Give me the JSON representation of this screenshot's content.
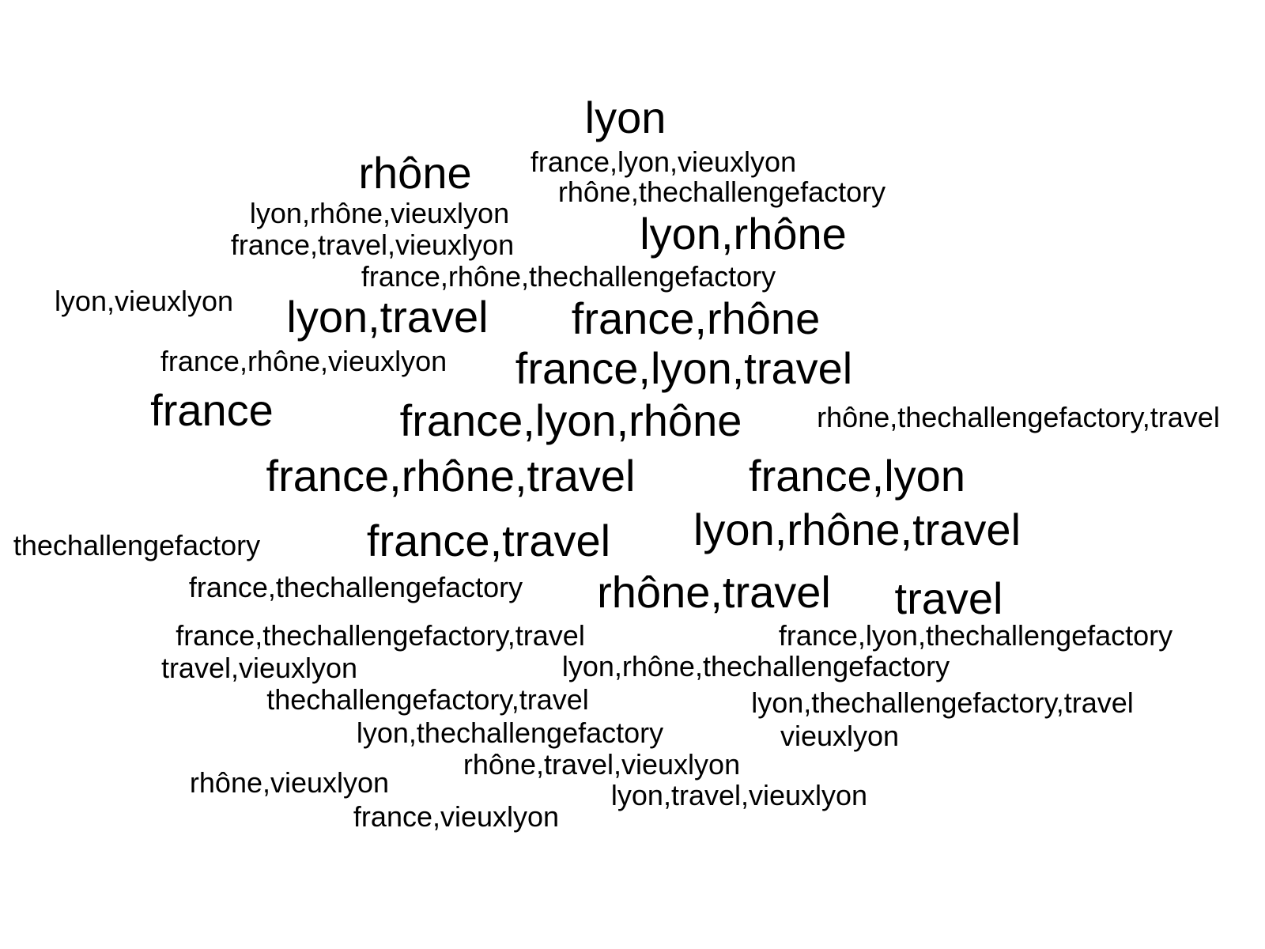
{
  "word_cloud": {
    "words": [
      "lyon",
      "france,lyon,vieuxlyon",
      "rhône",
      "rhône,thechallengefactory",
      "lyon,rhône,vieuxlyon",
      "lyon,rhône",
      "france,travel,vieuxlyon",
      "france,rhône,thechallengefactory",
      "lyon,vieuxlyon",
      "lyon,travel",
      "france,rhône",
      "france,rhône,vieuxlyon",
      "france,lyon,travel",
      "france",
      "france,lyon,rhône",
      "rhône,thechallengefactory,travel",
      "france,rhône,travel",
      "france,lyon",
      "lyon,rhône,travel",
      "thechallengefactory",
      "france,travel",
      "france,thechallengefactory",
      "rhône,travel",
      "travel",
      "france,thechallengefactory,travel",
      "france,lyon,thechallengefactory",
      "travel,vieuxlyon",
      "lyon,rhône,thechallengefactory",
      "thechallengefactory,travel",
      "lyon,thechallengefactory,travel",
      "lyon,thechallengefactory",
      "vieuxlyon",
      "rhône,travel,vieuxlyon",
      "rhône,vieuxlyon",
      "lyon,travel,vieuxlyon",
      "france,vieuxlyon"
    ]
  }
}
